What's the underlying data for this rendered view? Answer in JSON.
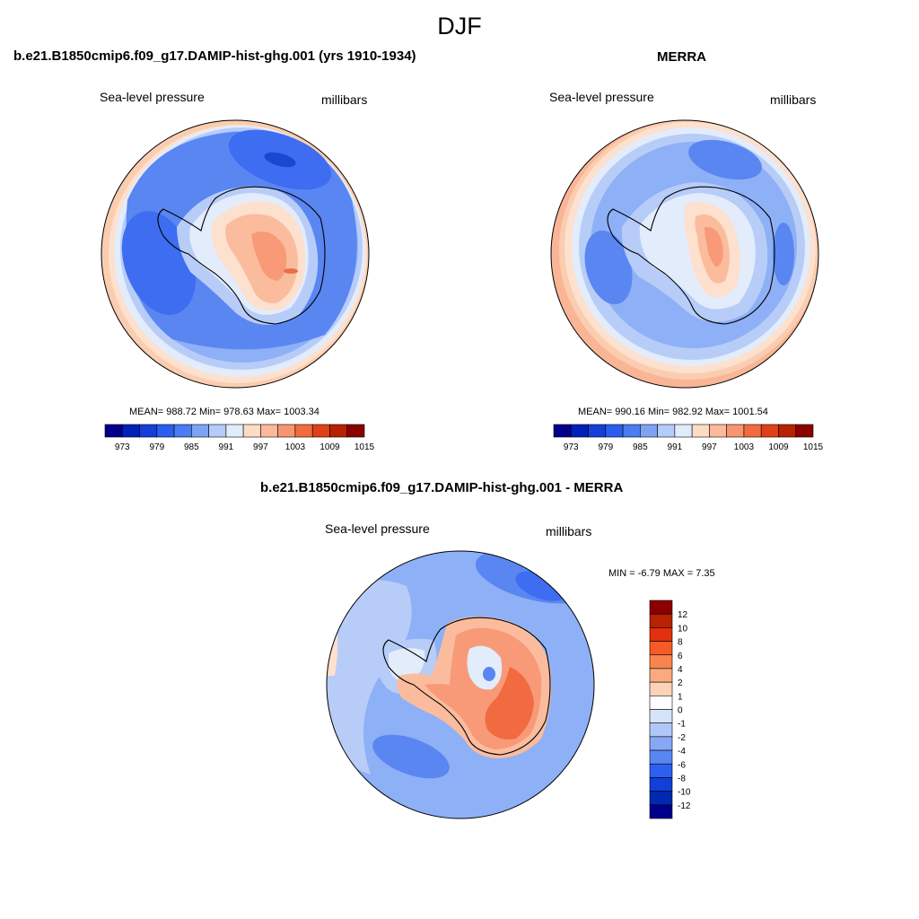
{
  "figure": {
    "title": "DJF"
  },
  "panels": {
    "model": {
      "title": "b.e21.B1850cmip6.f09_g17.DAMIP-hist-ghg.001 (yrs 1910-1934)",
      "variable": "Sea-level pressure",
      "units": "millibars",
      "stats": "MEAN= 988.72  Min= 978.63  Max= 1003.34"
    },
    "obs": {
      "title": "MERRA",
      "variable": "Sea-level pressure",
      "units": "millibars",
      "stats": "MEAN= 990.16  Min= 982.92  Max= 1001.54"
    },
    "diff": {
      "title": "b.e21.B1850cmip6.f09_g17.DAMIP-hist-ghg.001 - MERRA",
      "variable": "Sea-level pressure",
      "units": "millibars",
      "stats": "MIN =  -6.79 MAX =   7.35"
    }
  },
  "colorbars": {
    "slp": {
      "labels": [
        "973",
        "979",
        "985",
        "991",
        "997",
        "1003",
        "1009",
        "1015"
      ],
      "colors": [
        "#00008b",
        "#0020b8",
        "#1440d8",
        "#2b5ef0",
        "#4a7cf2",
        "#7ea3f5",
        "#b4ccfa",
        "#e0ecfb",
        "#fddcc4",
        "#fbb99a",
        "#f8956f",
        "#f26a40",
        "#e04018",
        "#b82200",
        "#8b0000"
      ]
    },
    "diff": {
      "labels": [
        "12",
        "10",
        "8",
        "6",
        "4",
        "2",
        "1",
        "0",
        "-1",
        "-2",
        "-4",
        "-6",
        "-8",
        "-10",
        "-12"
      ],
      "colors": [
        "#8b0000",
        "#b82200",
        "#e03010",
        "#f55a28",
        "#f8854e",
        "#fbaa80",
        "#fdd3b8",
        "#ffffff",
        "#d6e4fa",
        "#b0c8f7",
        "#86a8f5",
        "#5a86f2",
        "#2e60ef",
        "#1040d8",
        "#0028b0",
        "#00008b"
      ]
    }
  }
}
